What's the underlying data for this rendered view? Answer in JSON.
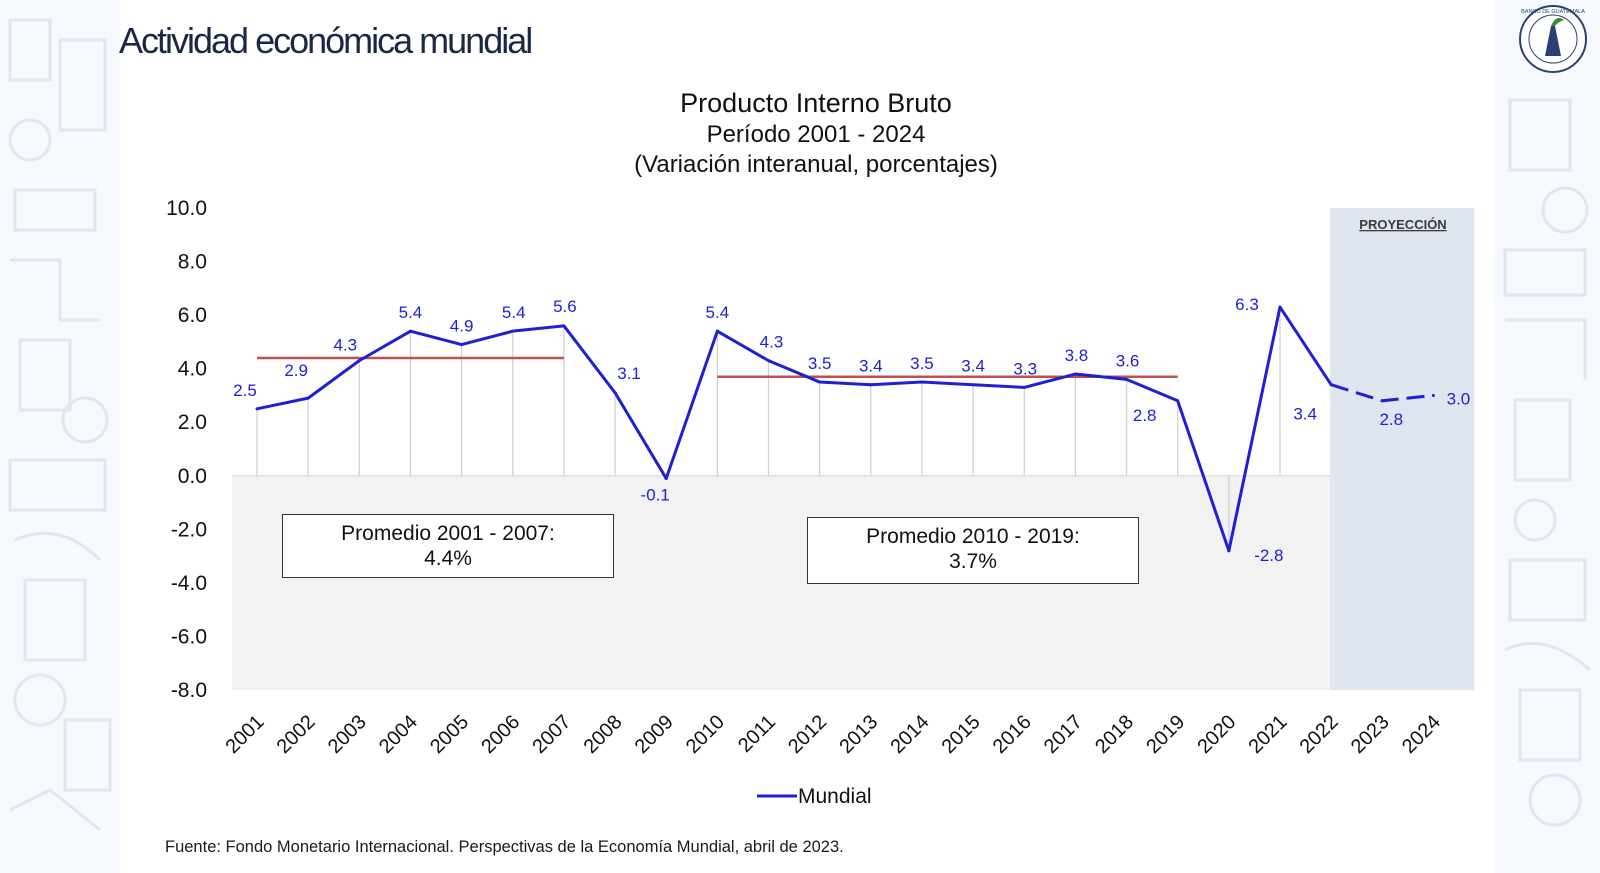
{
  "slide": {
    "title": "Actividad económica mundial",
    "logo_text": "BANCO DE GUATEMALA",
    "source": "Fuente: Fondo Monetario Internacional. Perspectivas de la Economía Mundial, abril de 2023."
  },
  "averages": [
    {
      "label": "Promedio 2001 - 2007:",
      "value_text": "4.4%",
      "value": 4.4,
      "from": "2001",
      "to": "2007"
    },
    {
      "label": "Promedio 2010 - 2019:",
      "value_text": "3.7%",
      "value": 3.7,
      "from": "2010",
      "to": "2019"
    }
  ],
  "colors": {
    "series": "#1f1fd6",
    "average_line": "#c0504d",
    "projection_band": "#dfe6f0",
    "plot_negative_bg": "#f2f2f2",
    "title_text": "#1b2746",
    "grid": "#cfcfcf"
  },
  "chart_data": {
    "type": "line",
    "title": "Producto Interno Bruto",
    "subtitle_1": "Período 2001 - 2024",
    "subtitle_2": "(Variación interanual, porcentajes)",
    "xlabel": "",
    "ylabel": "",
    "ylim": [
      -8,
      10
    ],
    "yticks": [
      10.0,
      8.0,
      6.0,
      4.0,
      2.0,
      0.0,
      -2.0,
      -4.0,
      -6.0,
      -8.0
    ],
    "ytick_labels": [
      "10.0",
      "8.0",
      "6.0",
      "4.0",
      "2.0",
      "0.0",
      "-2.0",
      "-4.0",
      "-6.0",
      "-8.0"
    ],
    "categories": [
      "2001",
      "2002",
      "2003",
      "2004",
      "2005",
      "2006",
      "2007",
      "2008",
      "2009",
      "2010",
      "2011",
      "2012",
      "2013",
      "2014",
      "2015",
      "2016",
      "2017",
      "2018",
      "2019",
      "2020",
      "2021",
      "2022",
      "2023",
      "2024"
    ],
    "series": [
      {
        "name": "Mundial",
        "values": [
          2.5,
          2.9,
          4.3,
          5.4,
          4.9,
          5.4,
          5.6,
          3.1,
          -0.1,
          5.4,
          4.3,
          3.5,
          3.4,
          3.5,
          3.4,
          3.3,
          3.8,
          3.6,
          2.8,
          -2.8,
          6.3,
          3.4,
          2.8,
          3.0
        ],
        "labels": [
          "2.5",
          "2.9",
          "4.3",
          "5.4",
          "4.9",
          "5.4",
          "5.6",
          "3.1",
          "-0.1",
          "5.4",
          "4.3",
          "3.5",
          "3.4",
          "3.5",
          "3.4",
          "3.3",
          "3.8",
          "3.6",
          "2.8",
          "-2.8",
          "6.3",
          "3.4",
          "2.8",
          "3.0"
        ],
        "projected_from": "2022"
      }
    ],
    "projection": {
      "label": "PROYECCIÓN",
      "from": "2022",
      "to": "2024"
    },
    "legend": {
      "position": "bottom-center",
      "entries": [
        "Mundial"
      ]
    },
    "grid": "vertical"
  }
}
